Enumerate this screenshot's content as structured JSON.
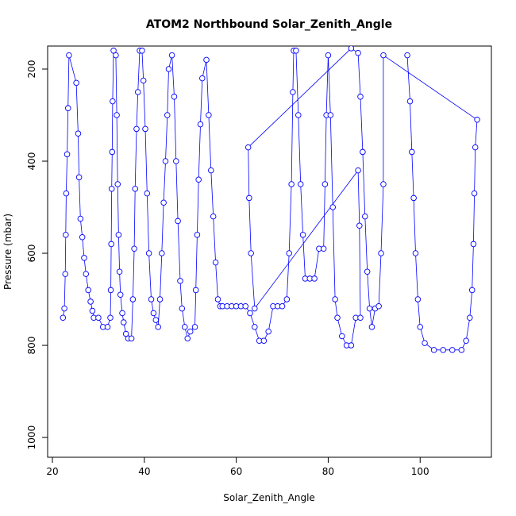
{
  "chart_data": {
    "type": "scatter",
    "title": "ATOM2 Northbound Solar_Zenith_Angle",
    "x_label": "Solar_Zenith_Angle",
    "y_label": "Pressure (mbar)",
    "color": "#0000ff",
    "xlim": [
      18.96,
      115.5
    ],
    "ylim": [
      1043,
      150
    ],
    "xticks": [
      20,
      40,
      60,
      80,
      100
    ],
    "yticks": [
      200,
      400,
      600,
      800,
      1000
    ],
    "x": [
      22.3,
      22.6,
      22.8,
      22.9,
      23.0,
      23.2,
      23.4,
      23.6,
      25.2,
      25.6,
      25.8,
      26.1,
      26.5,
      26.9,
      27.3,
      27.8,
      28.3,
      28.7,
      29,
      30,
      31,
      32,
      32.6,
      32.7,
      32.8,
      32.9,
      33.0,
      33.1,
      33.3,
      33.8,
      34.0,
      34.2,
      34.4,
      34.6,
      34.8,
      35.2,
      35.5,
      36,
      36.5,
      37.2,
      37.5,
      37.8,
      38.0,
      38.3,
      38.6,
      39.0,
      39.5,
      39.8,
      40.2,
      40.6,
      41.0,
      41.5,
      42,
      42.5,
      43,
      43.4,
      43.8,
      44.2,
      44.6,
      45.0,
      45.3,
      46,
      46.5,
      46.9,
      47.3,
      47.8,
      48.2,
      48.8,
      49.4,
      50,
      51,
      51.2,
      51.5,
      51.8,
      52.2,
      52.6,
      53.5,
      54,
      54.5,
      55,
      55.5,
      56,
      56.5,
      57,
      58,
      59,
      60,
      61,
      62,
      63,
      64,
      65,
      66,
      67,
      68,
      69,
      70,
      71,
      71.5,
      72,
      72.3,
      72.5,
      73,
      73.5,
      74,
      74.5,
      75,
      76,
      77,
      78,
      79,
      79.3,
      79.6,
      80,
      80.5,
      81,
      81.5,
      82,
      83,
      84,
      85,
      86,
      87,
      86.8,
      86.5,
      64,
      63.2,
      62.8,
      62.6,
      85,
      86.5,
      87,
      87.5,
      88,
      88.5,
      89,
      89.5,
      90.2,
      91,
      91.5,
      92,
      92,
      112.4,
      112,
      111.8,
      111.6,
      111.3,
      110.8,
      110,
      109,
      107,
      105,
      103,
      101,
      100,
      99.5,
      99,
      98.6,
      98.2,
      97.8,
      97.2
    ],
    "values": [
      740,
      720,
      645,
      560,
      470,
      385,
      285,
      170,
      230,
      340,
      435,
      525,
      565,
      610,
      645,
      680,
      705,
      725,
      740,
      740,
      760,
      760,
      740,
      680,
      580,
      460,
      380,
      270,
      160,
      170,
      300,
      450,
      560,
      640,
      690,
      730,
      750,
      775,
      785,
      785,
      700,
      590,
      460,
      330,
      250,
      160,
      160,
      225,
      330,
      470,
      600,
      700,
      730,
      745,
      760,
      700,
      600,
      490,
      400,
      300,
      200,
      170,
      260,
      400,
      530,
      660,
      720,
      760,
      785,
      770,
      760,
      680,
      560,
      440,
      320,
      220,
      180,
      300,
      420,
      520,
      620,
      700,
      715,
      715,
      715,
      715,
      715,
      715,
      715,
      730,
      760,
      790,
      790,
      770,
      715,
      715,
      715,
      700,
      600,
      450,
      250,
      160,
      160,
      300,
      450,
      560,
      655,
      655,
      655,
      590,
      590,
      450,
      300,
      170,
      300,
      500,
      700,
      740,
      780,
      800,
      800,
      740,
      740,
      540,
      420,
      720,
      600,
      480,
      370,
      155,
      165,
      260,
      380,
      520,
      640,
      720,
      760,
      720,
      715,
      600,
      450,
      170,
      310,
      370,
      470,
      580,
      680,
      740,
      790,
      810,
      810,
      810,
      810,
      795,
      760,
      700,
      600,
      480,
      380,
      270,
      170
    ]
  }
}
